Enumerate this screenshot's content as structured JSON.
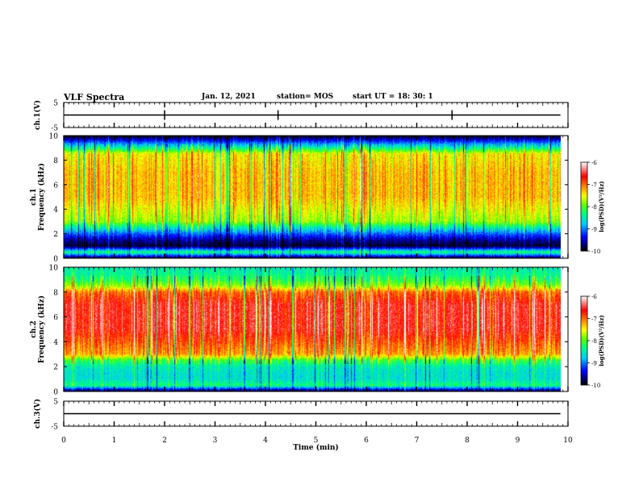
{
  "header": {
    "title": "VLF Spectra",
    "date": "Jan. 12, 2021",
    "station": "station= MOS",
    "start": "start  UT =   18: 30: 1"
  },
  "chart_data": [
    {
      "type": "line",
      "name": "ch1-waveform",
      "ylabel": "ch.1(V)",
      "ylim": [
        -5,
        5
      ],
      "yticks": [
        5,
        -5
      ],
      "x": [
        0,
        1,
        2,
        3,
        4,
        5,
        6,
        7,
        8,
        9,
        9.85
      ],
      "series": [
        {
          "values": [
            0,
            0,
            0,
            0,
            0,
            0,
            0,
            0,
            0,
            0,
            0
          ]
        }
      ]
    },
    {
      "type": "heatmap",
      "name": "ch1-spectrogram",
      "ylabel": "ch.1\nFrequency (kHz)",
      "ylim": [
        0,
        10
      ],
      "yticks": [
        0,
        2,
        4,
        6,
        8,
        10
      ],
      "xlim": [
        0,
        10
      ],
      "data_end_min": 9.85,
      "colorbar": {
        "label": "log(PSD)(V²/Hz)",
        "range": [
          -10,
          -6
        ],
        "ticks": [
          -6,
          -7,
          -8,
          -9,
          -10
        ]
      },
      "profile_kHz": [
        0,
        0.5,
        1,
        1.5,
        2,
        2.5,
        3,
        5,
        7,
        8.5,
        9,
        9.5,
        10
      ],
      "profile_logpsd": [
        -9.9,
        -8.3,
        -9.9,
        -9.6,
        -9.1,
        -8.5,
        -7.8,
        -7.3,
        -7.3,
        -7.5,
        -8.4,
        -9.2,
        -10
      ]
    },
    {
      "type": "heatmap",
      "name": "ch2-spectrogram",
      "ylabel": "ch.2\nFrequency (kHz)",
      "ylim": [
        0,
        10
      ],
      "yticks": [
        0,
        2,
        4,
        6,
        8,
        10
      ],
      "xlim": [
        0,
        10
      ],
      "data_end_min": 9.85,
      "colorbar": {
        "label": "log(PSD)(V²/Hz)",
        "range": [
          -10,
          -6
        ],
        "ticks": [
          -6,
          -7,
          -8,
          -9,
          -10
        ]
      },
      "profile_kHz": [
        0,
        0.5,
        1,
        1.5,
        2,
        2.5,
        3,
        5,
        7,
        8,
        8.5,
        9,
        9.5,
        10
      ],
      "profile_logpsd": [
        -9.9,
        -8.3,
        -8.6,
        -8.6,
        -8.5,
        -8.1,
        -7.2,
        -6.6,
        -6.6,
        -7.0,
        -7.8,
        -8.2,
        -8.4,
        -8.5
      ]
    },
    {
      "type": "line",
      "name": "ch3-waveform",
      "ylabel": "ch.3(V)",
      "ylim": [
        -5,
        5
      ],
      "yticks": [
        5,
        -5
      ],
      "x": [
        0,
        1,
        2,
        3,
        4,
        5,
        6,
        7,
        8,
        9,
        9.85
      ],
      "series": [
        {
          "values": [
            0,
            0,
            0,
            0,
            0,
            0,
            0,
            0,
            0,
            0,
            0
          ]
        }
      ]
    }
  ],
  "xaxis": {
    "label": "Time  (min)",
    "range": [
      0,
      10
    ],
    "ticks": [
      0,
      1,
      2,
      3,
      4,
      5,
      6,
      7,
      8,
      9,
      10
    ]
  }
}
